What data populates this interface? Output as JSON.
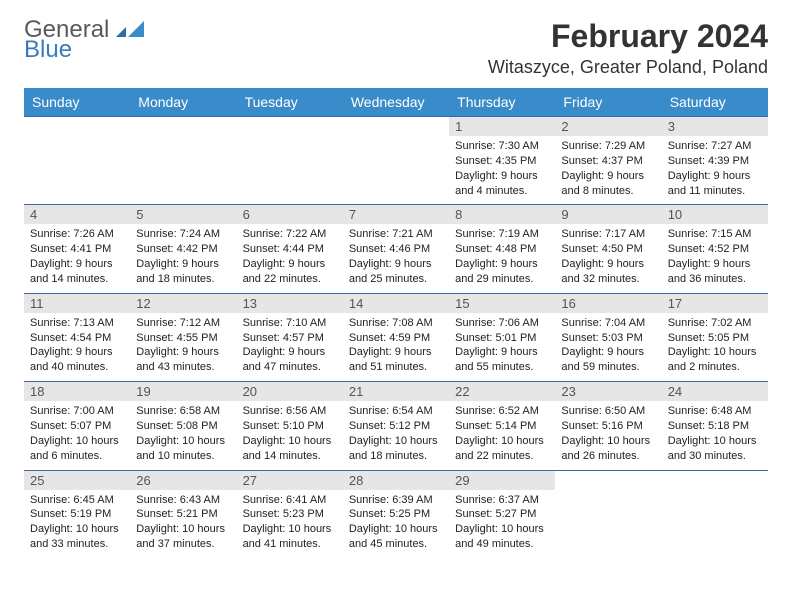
{
  "brand": {
    "word1": "General",
    "word2": "Blue",
    "text_color": "#5a5a5a",
    "accent_color": "#3a7bbf",
    "tri_colors": [
      "#2f6ea8",
      "#3a8bc9"
    ]
  },
  "header": {
    "month_title": "February 2024",
    "location": "Witaszyce, Greater Poland, Poland",
    "title_color": "#333333",
    "title_fontsize": 32,
    "location_fontsize": 18
  },
  "calendar": {
    "header_bg": "#3a8bc9",
    "header_text_color": "#ffffff",
    "row_border_color": "#3a6b9a",
    "daynum_bg": "#e6e6e6",
    "daynum_color": "#555555",
    "body_text_color": "#222222",
    "body_fontsize": 11,
    "days": [
      "Sunday",
      "Monday",
      "Tuesday",
      "Wednesday",
      "Thursday",
      "Friday",
      "Saturday"
    ],
    "weeks": [
      [
        null,
        null,
        null,
        null,
        {
          "n": "1",
          "sunrise": "7:30 AM",
          "sunset": "4:35 PM",
          "daylight": "9 hours and 4 minutes."
        },
        {
          "n": "2",
          "sunrise": "7:29 AM",
          "sunset": "4:37 PM",
          "daylight": "9 hours and 8 minutes."
        },
        {
          "n": "3",
          "sunrise": "7:27 AM",
          "sunset": "4:39 PM",
          "daylight": "9 hours and 11 minutes."
        }
      ],
      [
        {
          "n": "4",
          "sunrise": "7:26 AM",
          "sunset": "4:41 PM",
          "daylight": "9 hours and 14 minutes."
        },
        {
          "n": "5",
          "sunrise": "7:24 AM",
          "sunset": "4:42 PM",
          "daylight": "9 hours and 18 minutes."
        },
        {
          "n": "6",
          "sunrise": "7:22 AM",
          "sunset": "4:44 PM",
          "daylight": "9 hours and 22 minutes."
        },
        {
          "n": "7",
          "sunrise": "7:21 AM",
          "sunset": "4:46 PM",
          "daylight": "9 hours and 25 minutes."
        },
        {
          "n": "8",
          "sunrise": "7:19 AM",
          "sunset": "4:48 PM",
          "daylight": "9 hours and 29 minutes."
        },
        {
          "n": "9",
          "sunrise": "7:17 AM",
          "sunset": "4:50 PM",
          "daylight": "9 hours and 32 minutes."
        },
        {
          "n": "10",
          "sunrise": "7:15 AM",
          "sunset": "4:52 PM",
          "daylight": "9 hours and 36 minutes."
        }
      ],
      [
        {
          "n": "11",
          "sunrise": "7:13 AM",
          "sunset": "4:54 PM",
          "daylight": "9 hours and 40 minutes."
        },
        {
          "n": "12",
          "sunrise": "7:12 AM",
          "sunset": "4:55 PM",
          "daylight": "9 hours and 43 minutes."
        },
        {
          "n": "13",
          "sunrise": "7:10 AM",
          "sunset": "4:57 PM",
          "daylight": "9 hours and 47 minutes."
        },
        {
          "n": "14",
          "sunrise": "7:08 AM",
          "sunset": "4:59 PM",
          "daylight": "9 hours and 51 minutes."
        },
        {
          "n": "15",
          "sunrise": "7:06 AM",
          "sunset": "5:01 PM",
          "daylight": "9 hours and 55 minutes."
        },
        {
          "n": "16",
          "sunrise": "7:04 AM",
          "sunset": "5:03 PM",
          "daylight": "9 hours and 59 minutes."
        },
        {
          "n": "17",
          "sunrise": "7:02 AM",
          "sunset": "5:05 PM",
          "daylight": "10 hours and 2 minutes."
        }
      ],
      [
        {
          "n": "18",
          "sunrise": "7:00 AM",
          "sunset": "5:07 PM",
          "daylight": "10 hours and 6 minutes."
        },
        {
          "n": "19",
          "sunrise": "6:58 AM",
          "sunset": "5:08 PM",
          "daylight": "10 hours and 10 minutes."
        },
        {
          "n": "20",
          "sunrise": "6:56 AM",
          "sunset": "5:10 PM",
          "daylight": "10 hours and 14 minutes."
        },
        {
          "n": "21",
          "sunrise": "6:54 AM",
          "sunset": "5:12 PM",
          "daylight": "10 hours and 18 minutes."
        },
        {
          "n": "22",
          "sunrise": "6:52 AM",
          "sunset": "5:14 PM",
          "daylight": "10 hours and 22 minutes."
        },
        {
          "n": "23",
          "sunrise": "6:50 AM",
          "sunset": "5:16 PM",
          "daylight": "10 hours and 26 minutes."
        },
        {
          "n": "24",
          "sunrise": "6:48 AM",
          "sunset": "5:18 PM",
          "daylight": "10 hours and 30 minutes."
        }
      ],
      [
        {
          "n": "25",
          "sunrise": "6:45 AM",
          "sunset": "5:19 PM",
          "daylight": "10 hours and 33 minutes."
        },
        {
          "n": "26",
          "sunrise": "6:43 AM",
          "sunset": "5:21 PM",
          "daylight": "10 hours and 37 minutes."
        },
        {
          "n": "27",
          "sunrise": "6:41 AM",
          "sunset": "5:23 PM",
          "daylight": "10 hours and 41 minutes."
        },
        {
          "n": "28",
          "sunrise": "6:39 AM",
          "sunset": "5:25 PM",
          "daylight": "10 hours and 45 minutes."
        },
        {
          "n": "29",
          "sunrise": "6:37 AM",
          "sunset": "5:27 PM",
          "daylight": "10 hours and 49 minutes."
        },
        null,
        null
      ]
    ]
  },
  "labels": {
    "sunrise_prefix": "Sunrise: ",
    "sunset_prefix": "Sunset: ",
    "daylight_prefix": "Daylight: "
  }
}
